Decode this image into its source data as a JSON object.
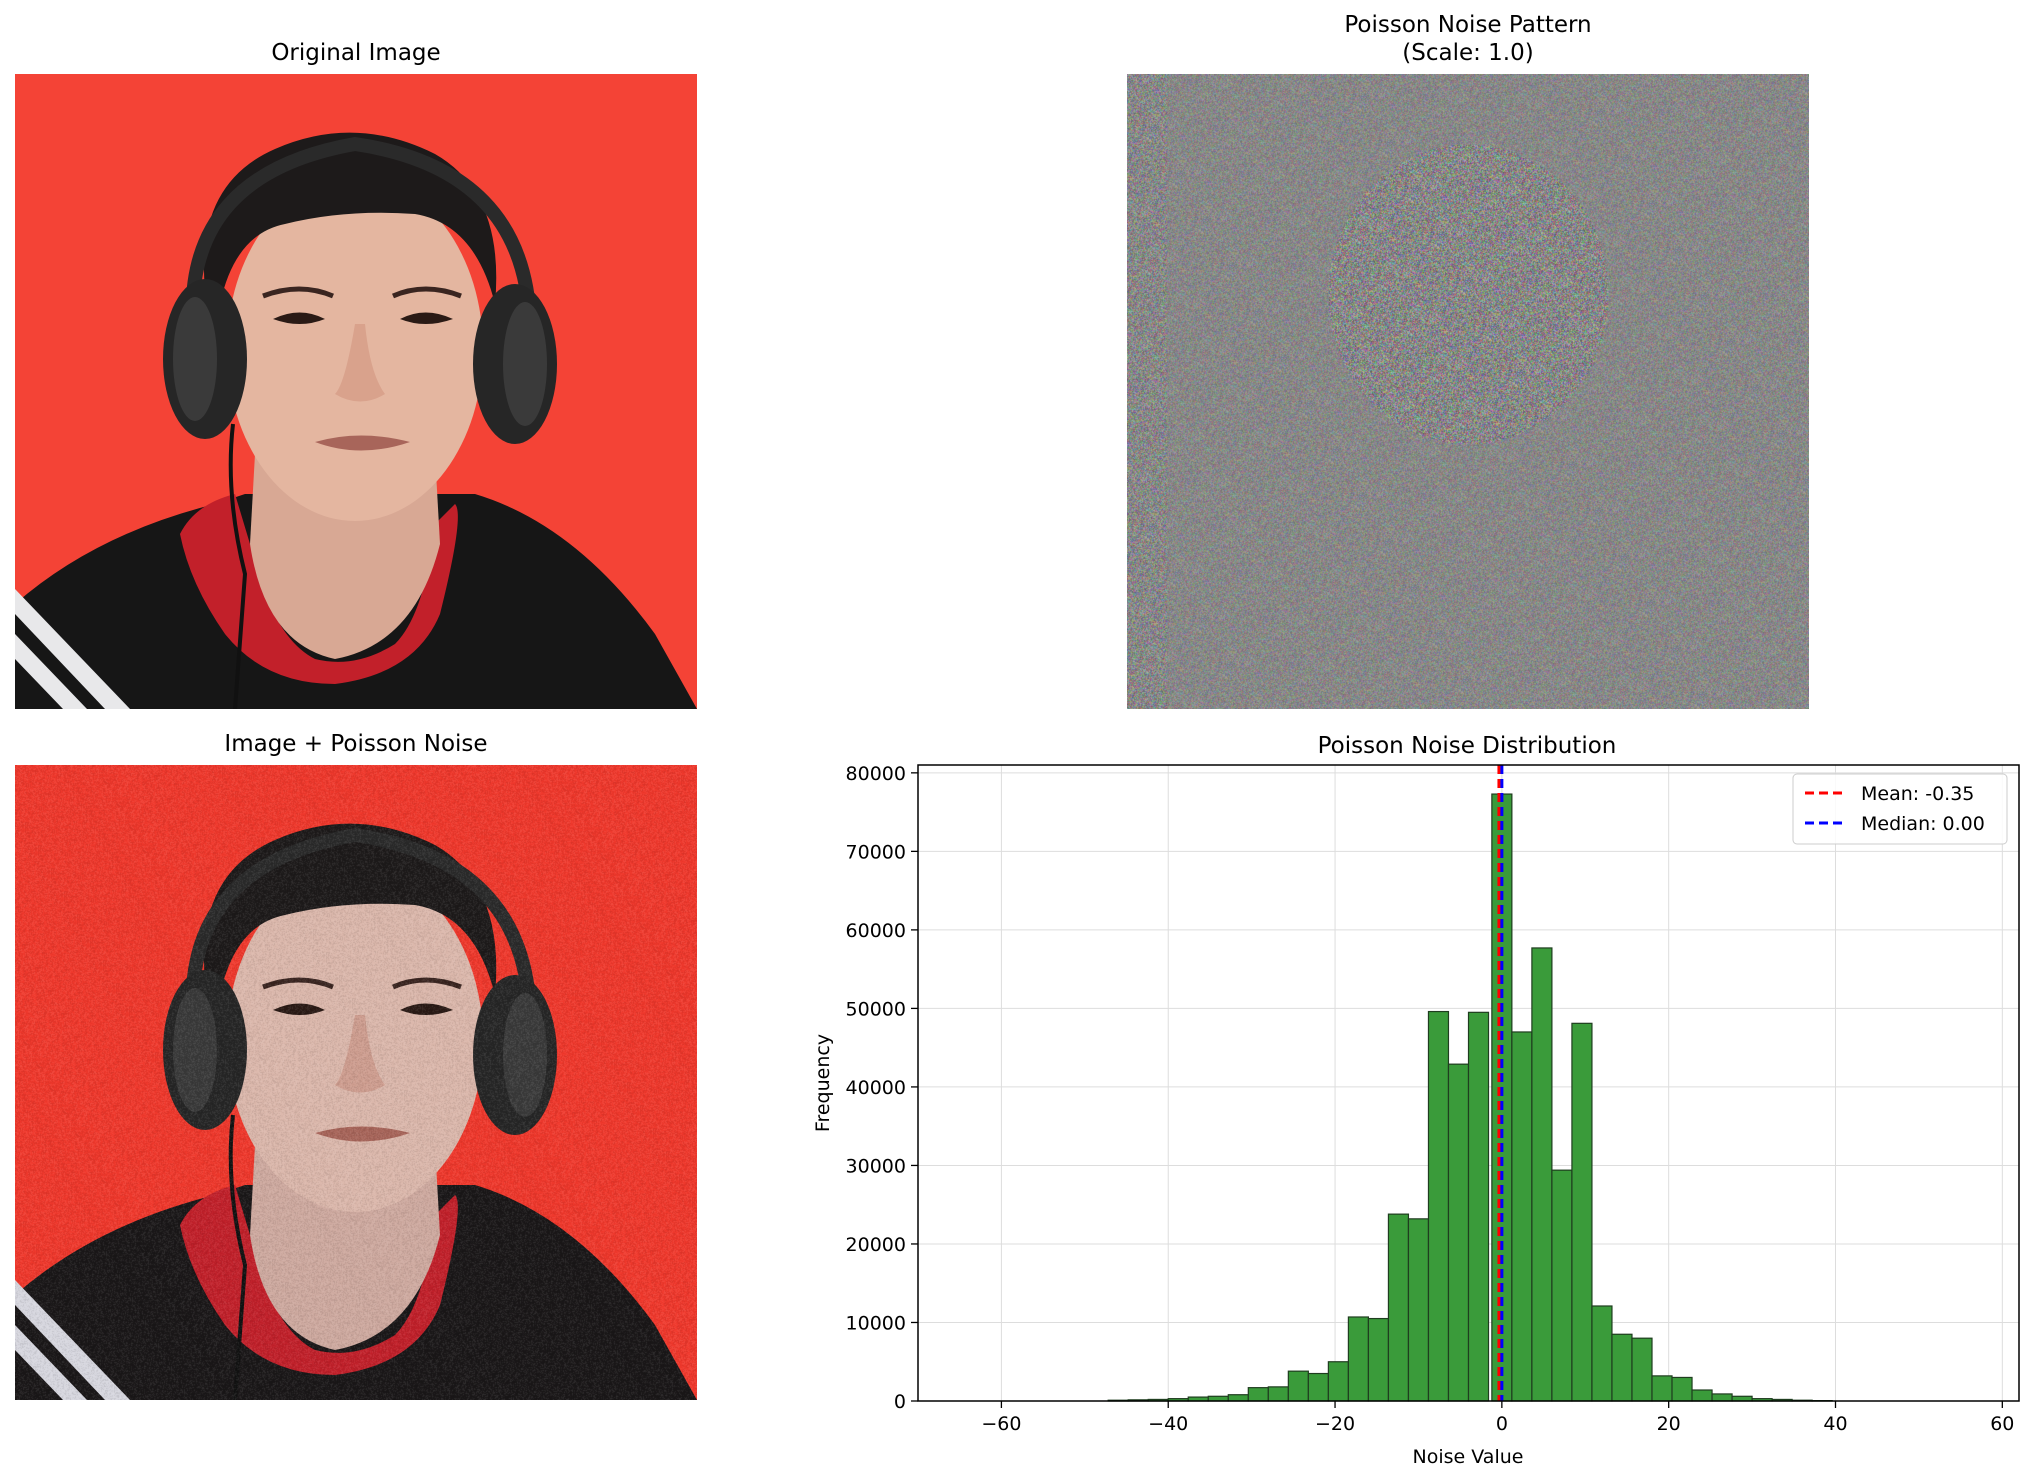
{
  "panels": {
    "original": {
      "title": "Original Image"
    },
    "noise_pattern": {
      "title_line1": "Poisson Noise Pattern",
      "title_line2": "(Scale: 1.0)"
    },
    "noisy": {
      "title": "Image + Poisson Noise"
    }
  },
  "colors": {
    "background_red": "#f44336",
    "bar_fill": "#3a9b3a",
    "mean_line": "#ff0000",
    "median_line": "#0000ff",
    "noise_gray": "#888888"
  },
  "chart_data": {
    "type": "bar",
    "title": "Poisson Noise Distribution",
    "xlabel": "Noise Value",
    "ylabel": "Frequency",
    "xlim": [
      -70,
      62
    ],
    "ylim": [
      0,
      81000
    ],
    "xticks": [
      -60,
      -40,
      -20,
      0,
      20,
      40,
      60
    ],
    "xtick_labels": [
      "−60",
      "−40",
      "−20",
      "0",
      "20",
      "40",
      "60"
    ],
    "yticks": [
      0,
      10000,
      20000,
      30000,
      40000,
      50000,
      60000,
      70000,
      80000
    ],
    "grid": true,
    "legend_position": "top-right",
    "bin_width": 2.4,
    "bins": [
      {
        "x": -47.2,
        "value": 100
      },
      {
        "x": -44.8,
        "value": 150
      },
      {
        "x": -42.4,
        "value": 200
      },
      {
        "x": -40.0,
        "value": 300
      },
      {
        "x": -37.6,
        "value": 500
      },
      {
        "x": -35.2,
        "value": 600
      },
      {
        "x": -32.8,
        "value": 800
      },
      {
        "x": -30.4,
        "value": 1700
      },
      {
        "x": -28.0,
        "value": 1800
      },
      {
        "x": -25.6,
        "value": 3800
      },
      {
        "x": -23.2,
        "value": 3500
      },
      {
        "x": -20.8,
        "value": 5000
      },
      {
        "x": -18.4,
        "value": 10700
      },
      {
        "x": -16.0,
        "value": 10500
      },
      {
        "x": -13.6,
        "value": 23800
      },
      {
        "x": -11.2,
        "value": 23200
      },
      {
        "x": -8.8,
        "value": 49600
      },
      {
        "x": -6.4,
        "value": 42900
      },
      {
        "x": -4.0,
        "value": 49500
      },
      {
        "x": -1.6,
        "value": 0
      },
      {
        "x": -1.2,
        "value": 77300
      },
      {
        "x": 1.2,
        "value": 47000
      },
      {
        "x": 3.6,
        "value": 57700
      },
      {
        "x": 6.0,
        "value": 29400
      },
      {
        "x": 8.4,
        "value": 48100
      },
      {
        "x": 10.8,
        "value": 12100
      },
      {
        "x": 13.2,
        "value": 8500
      },
      {
        "x": 15.6,
        "value": 8000
      },
      {
        "x": 18.0,
        "value": 3200
      },
      {
        "x": 20.4,
        "value": 3000
      },
      {
        "x": 22.8,
        "value": 1400
      },
      {
        "x": 25.2,
        "value": 900
      },
      {
        "x": 27.6,
        "value": 600
      },
      {
        "x": 30.0,
        "value": 300
      },
      {
        "x": 32.4,
        "value": 200
      },
      {
        "x": 34.8,
        "value": 100
      },
      {
        "x": 37.2,
        "value": 50
      }
    ],
    "mean": -0.35,
    "median": 0.0,
    "legend": [
      "Mean: -0.35",
      "Median: 0.00"
    ]
  }
}
